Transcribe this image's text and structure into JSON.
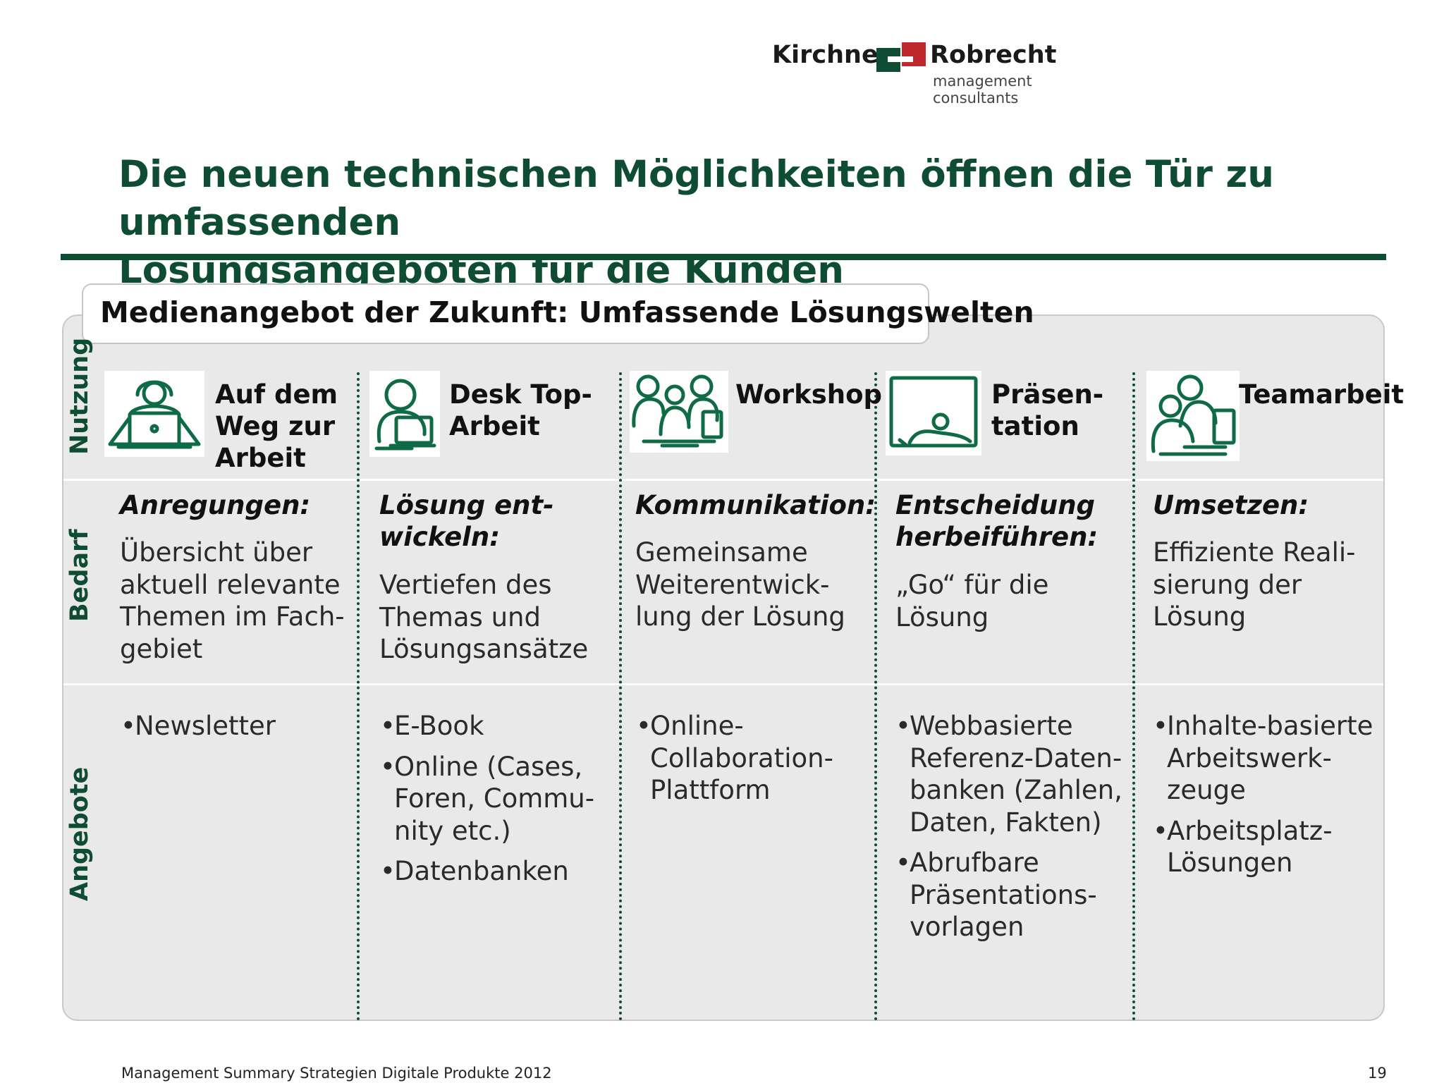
{
  "logo": {
    "word1": "Kirchner",
    "word2": "Robrecht",
    "subtitle": "management consultants",
    "colors": [
      "#0e4d34",
      "#c0272d"
    ]
  },
  "title_lines": [
    "Die neuen technischen Möglichkeiten öffnen die Tür zu umfassenden",
    "Lösungsangeboten für die Kunden"
  ],
  "panel_title": "Medienangebot der Zukunft: Umfassende Lösungswelten",
  "row_labels": {
    "nutzung": "Nutzung",
    "bedarf": "Bedarf",
    "angebote": "Angebote"
  },
  "columns": [
    {
      "icon": "commuter-laptop-icon",
      "usage": [
        "Auf dem",
        "Weg zur",
        "Arbeit"
      ],
      "need_title": [
        "Anregungen:"
      ],
      "need_text": [
        "Übersicht über",
        "aktuell relevante",
        "Themen im Fach-",
        "gebiet"
      ],
      "offers": [
        [
          "Newsletter"
        ]
      ]
    },
    {
      "icon": "desktop-user-icon",
      "usage": [
        "Desk Top-",
        "Arbeit"
      ],
      "need_title": [
        "Lösung ent-",
        "wickeln:"
      ],
      "need_text": [
        "Vertiefen des",
        "Themas und",
        "Lösungsansätze"
      ],
      "offers": [
        [
          "E-Book"
        ],
        [
          "Online (Cases,",
          "Foren, Commu-",
          "nity etc.)"
        ],
        [
          "Datenbanken"
        ]
      ]
    },
    {
      "icon": "workshop-group-icon",
      "usage": [
        "Workshop"
      ],
      "need_title": [
        "Kommunikation:"
      ],
      "need_text": [
        "Gemeinsame",
        "Weiterentwick-",
        "lung der Lösung"
      ],
      "offers": [
        [
          "Online-",
          "Collaboration-",
          "Plattform"
        ]
      ]
    },
    {
      "icon": "presentation-screen-icon",
      "usage": [
        "Präsen-",
        "tation"
      ],
      "need_title": [
        "Entscheidung",
        "herbeiführen:"
      ],
      "need_text": [
        "„Go“ für die",
        "Lösung"
      ],
      "offers": [
        [
          "Webbasierte",
          "Referenz-Daten-",
          "banken (Zahlen,",
          "Daten, Fakten)"
        ],
        [
          "Abrufbare",
          "Präsentations-",
          "vorlagen"
        ]
      ]
    },
    {
      "icon": "teamwork-icon",
      "usage": [
        "Teamarbeit"
      ],
      "need_title": [
        "Umsetzen:"
      ],
      "need_text": [
        "Effiziente Reali-",
        "sierung der",
        "Lösung"
      ],
      "offers": [
        [
          "Inhalte-basierte",
          "Arbeitswerk-",
          "zeuge"
        ],
        [
          "Arbeitsplatz-",
          "Lösungen"
        ]
      ]
    }
  ],
  "footer": {
    "text": "Management Summary Strategien Digitale Produkte 2012",
    "page": "19"
  },
  "accent_color": "#0e4d34"
}
